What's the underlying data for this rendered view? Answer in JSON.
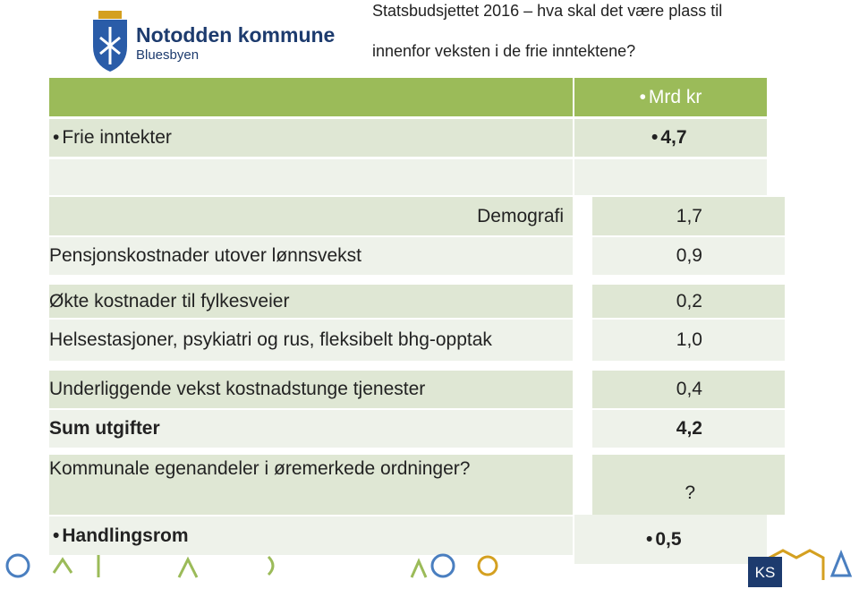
{
  "header": {
    "org_name": "Notodden kommune",
    "org_sub": "Bluesbyen",
    "title_line1": "Statsbudsjettet 2016 – hva skal det være plass til",
    "title_line2": "innenfor veksten i de frie inntektene?"
  },
  "table": {
    "unit_header": "Mrd kr",
    "income": {
      "label": "Frie inntekter",
      "value": "4,7"
    },
    "rows": [
      [
        "Demografi",
        "1,7"
      ],
      [
        "Pensjonskostnader utover lønnsvekst",
        "0,9"
      ],
      [
        "Økte kostnader til fylkesveier",
        "0,2"
      ],
      [
        "Helsestasjoner, psykiatri og rus, fleksibelt bhg-opptak",
        "1,0"
      ],
      [
        "Underliggende vekst kostnadstunge tjenester",
        "0,4"
      ],
      [
        "Sum utgifter",
        "4,2"
      ],
      [
        "Kommunale egenandeler i øremerkede ordninger?",
        "?"
      ]
    ],
    "result": {
      "label": "Handlingsrom",
      "value": "0,5"
    }
  },
  "footer": {
    "logo": "KS"
  }
}
